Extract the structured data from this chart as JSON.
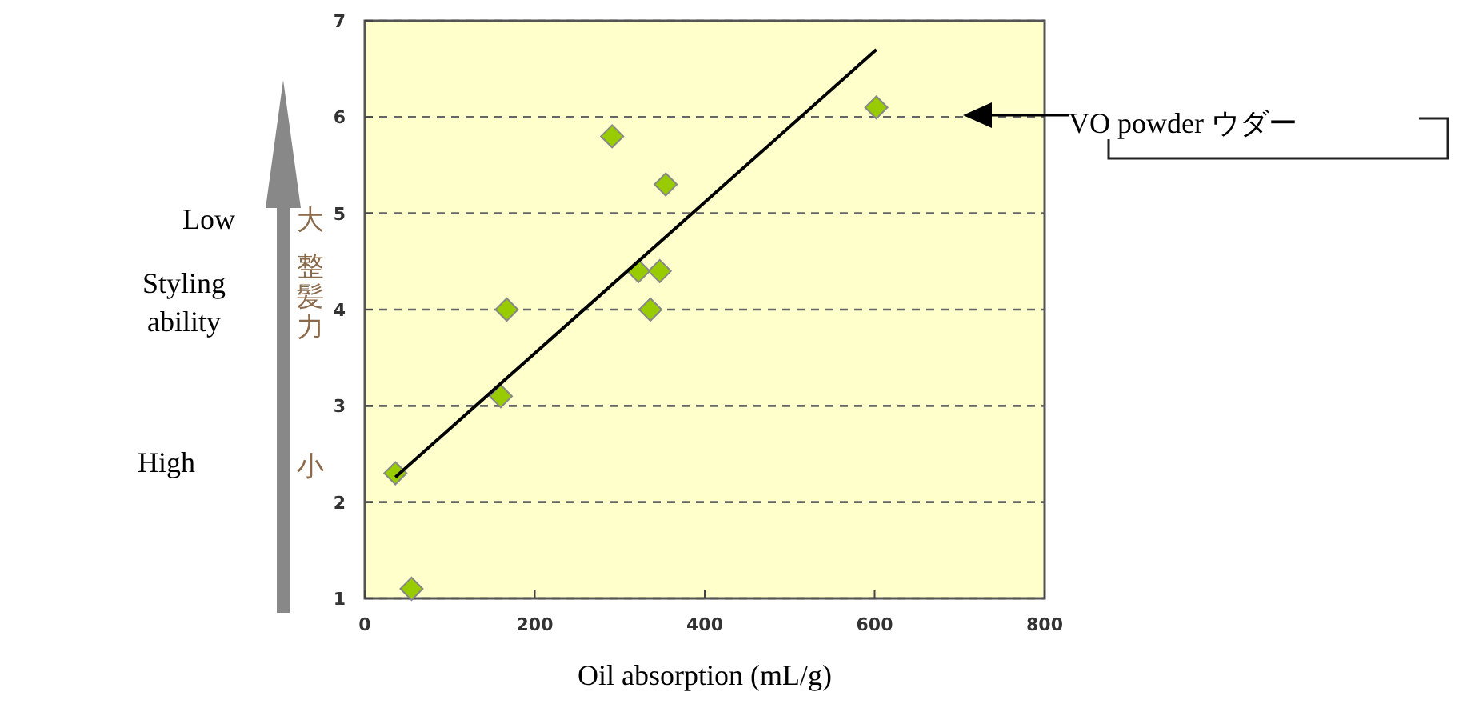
{
  "chart_data": {
    "type": "scatter",
    "xlabel": "Oil absorption (mL/g)",
    "xlim": [
      0,
      800
    ],
    "xticks": [
      0,
      200,
      400,
      600,
      800
    ],
    "ylim": [
      1,
      7
    ],
    "yticks": [
      1,
      2,
      3,
      4,
      5,
      6,
      7
    ],
    "grid": "y",
    "series": [
      {
        "color": "#99cc00",
        "marker": "diamond",
        "x": [
          36,
          55,
          160,
          167,
          291,
          322,
          336,
          347,
          354,
          602
        ],
        "values": [
          2.3,
          1.1,
          3.1,
          4.0,
          5.8,
          4.4,
          4.0,
          4.4,
          5.3,
          6.1
        ]
      },
      {
        "type": "line",
        "color": "#000000",
        "marker": "none",
        "x": [
          36,
          602
        ],
        "values": [
          2.26,
          6.7
        ]
      }
    ],
    "annotations": [
      "Low",
      "大",
      "Styling ability",
      "整髪力",
      "High",
      "小",
      "VO powder ウダー"
    ]
  }
}
